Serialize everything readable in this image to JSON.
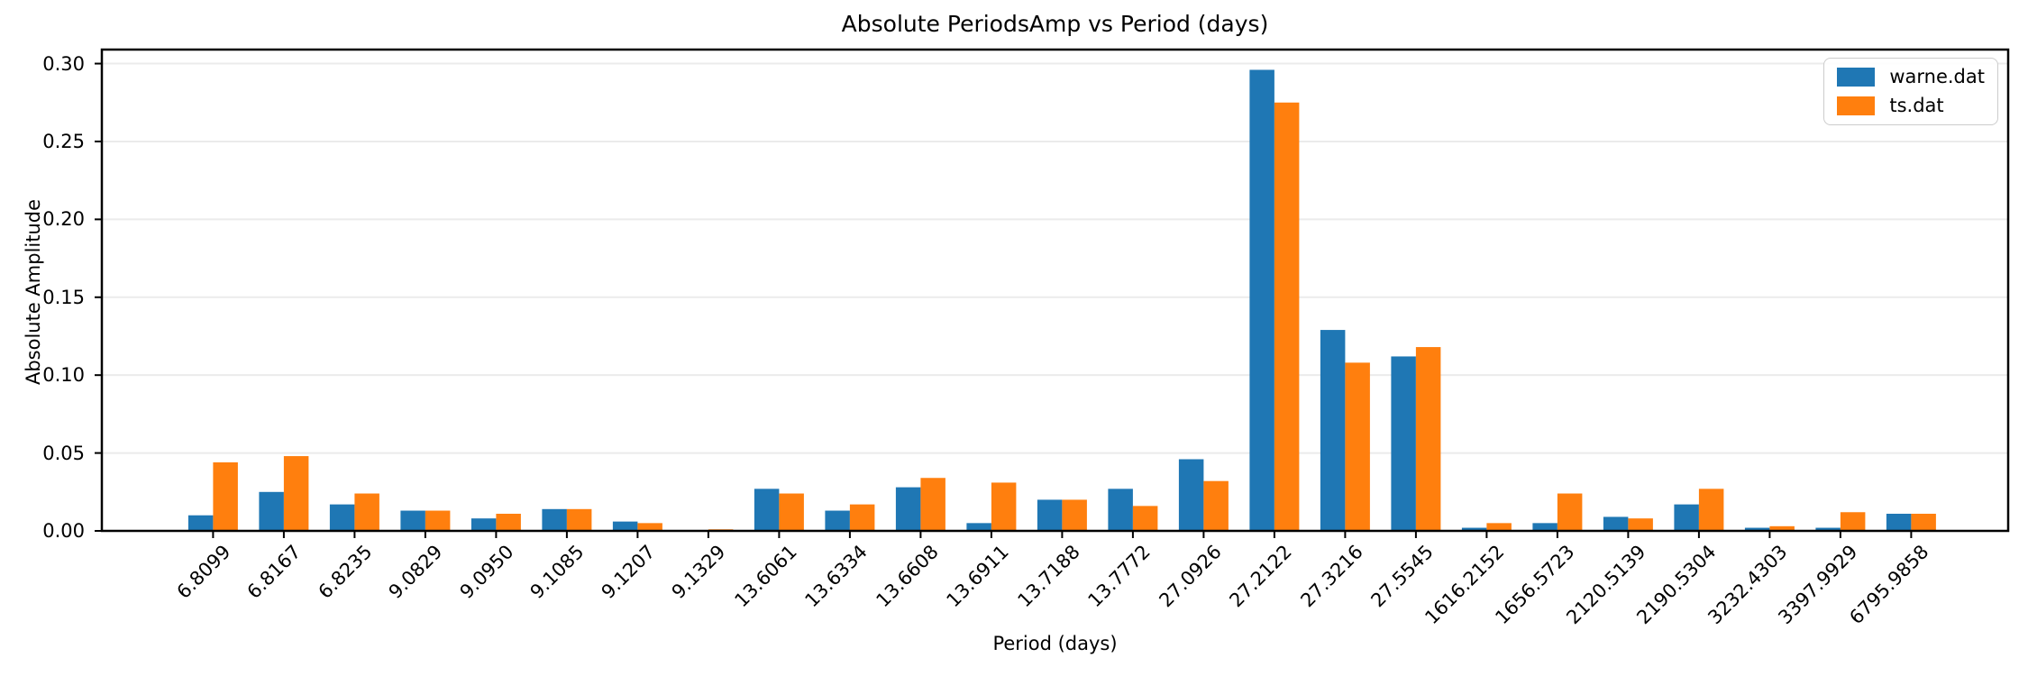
{
  "chart_data": {
    "type": "bar",
    "title": "Absolute PeriodsAmp vs Period (days)",
    "xlabel": "Period (days)",
    "ylabel": "Absolute Amplitude",
    "categories": [
      "6.8099",
      "6.8167",
      "6.8235",
      "9.0829",
      "9.0950",
      "9.1085",
      "9.1207",
      "9.1329",
      "13.6061",
      "13.6334",
      "13.6608",
      "13.6911",
      "13.7188",
      "13.7772",
      "27.0926",
      "27.2122",
      "27.3216",
      "27.5545",
      "1616.2152",
      "1656.5723",
      "2120.5139",
      "2190.5304",
      "3232.4303",
      "3397.9929",
      "6795.9858"
    ],
    "series": [
      {
        "name": "warne.dat",
        "color": "#1f77b4",
        "values": [
          0.01,
          0.025,
          0.017,
          0.013,
          0.008,
          0.014,
          0.006,
          0.0002,
          0.027,
          0.013,
          0.028,
          0.005,
          0.02,
          0.027,
          0.046,
          0.296,
          0.129,
          0.112,
          0.002,
          0.005,
          0.009,
          0.017,
          0.002,
          0.002,
          0.011
        ]
      },
      {
        "name": "ts.dat",
        "color": "#ff7f0e",
        "values": [
          0.044,
          0.048,
          0.024,
          0.013,
          0.011,
          0.014,
          0.005,
          0.001,
          0.024,
          0.017,
          0.034,
          0.031,
          0.02,
          0.016,
          0.032,
          0.275,
          0.108,
          0.118,
          0.005,
          0.024,
          0.008,
          0.027,
          0.003,
          0.012,
          0.011
        ]
      }
    ],
    "ylim": [
      0,
      0.309
    ],
    "yticks": [
      "0.00",
      "0.05",
      "0.10",
      "0.15",
      "0.20",
      "0.25",
      "0.30"
    ],
    "grid": true,
    "grid_color": "#ebebeb",
    "axis_color": "#000000",
    "legend_position": "upper right",
    "x_tick_rotation_deg": 45
  }
}
